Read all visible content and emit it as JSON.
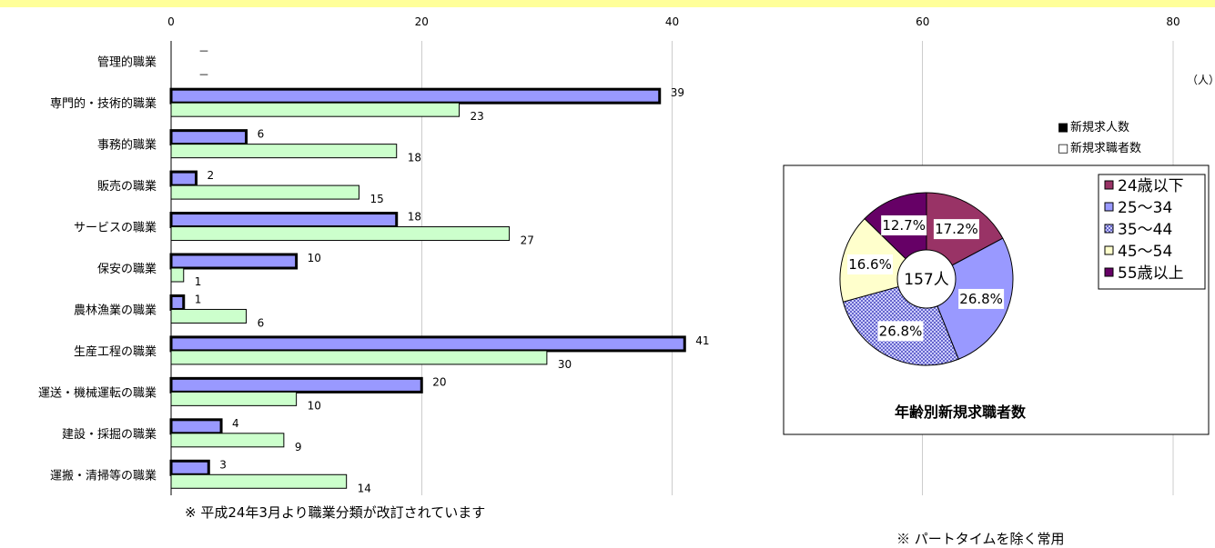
{
  "bar_chart": {
    "type": "bar",
    "orientation": "horizontal",
    "unit_label": "（人）",
    "xlim": [
      0,
      80
    ],
    "x_ticks": [
      "0",
      "20",
      "40",
      "60",
      "80"
    ],
    "grid": "vertical",
    "legend_position": "right",
    "categories": [
      "管理的職業",
      "専門的・技術的職業",
      "事務的職業",
      "販売の職業",
      "サービスの職業",
      "保安の職業",
      "農林漁業の職業",
      "生産工程の職業",
      "運送・機械運転の職業",
      "建設・採掘の職業",
      "運搬・清掃等の職業"
    ],
    "series": [
      {
        "name": "新規求人数",
        "color": "#9999ff",
        "values": [
          0,
          39,
          6,
          2,
          18,
          10,
          1,
          41,
          20,
          4,
          3
        ],
        "labels": [
          "－",
          "39",
          "6",
          "2",
          "18",
          "10",
          "1",
          "41",
          "20",
          "4",
          "3"
        ]
      },
      {
        "name": "新規求職者数",
        "color": "#ccffcc",
        "values": [
          0,
          23,
          18,
          15,
          27,
          1,
          6,
          30,
          10,
          9,
          14
        ],
        "labels": [
          "－",
          "23",
          "18",
          "15",
          "27",
          "1",
          "6",
          "30",
          "10",
          "9",
          "14"
        ]
      }
    ],
    "legend_items": [
      {
        "name": "新規求人数",
        "symbol": "■"
      },
      {
        "name": "新規求職者数",
        "symbol": "□"
      }
    ]
  },
  "pie_chart": {
    "type": "pie",
    "title": "年齢別新規求職者数",
    "center_label": "157人",
    "legend_position": "top-right",
    "slices": [
      {
        "name": "24歳以下",
        "value": 17.2,
        "label": "17.2%",
        "color": "#993366"
      },
      {
        "name": "25～34",
        "value": 26.8,
        "label": "26.8%",
        "color": "#9999ff"
      },
      {
        "name": "35～44",
        "value": 26.8,
        "label": "26.8%",
        "color": "#ccccff"
      },
      {
        "name": "45～54",
        "value": 16.6,
        "label": "16.6%",
        "color": "#ffffcc"
      },
      {
        "name": "55歳以上",
        "value": 12.7,
        "label": "12.7%",
        "color": "#660066"
      }
    ],
    "legend_symbols": [
      "■",
      "□",
      "▩",
      "□",
      "■"
    ]
  },
  "notes": {
    "left": "※ 平成24年3月より職業分類が改訂されています",
    "right": "※ パートタイムを除く常用"
  }
}
